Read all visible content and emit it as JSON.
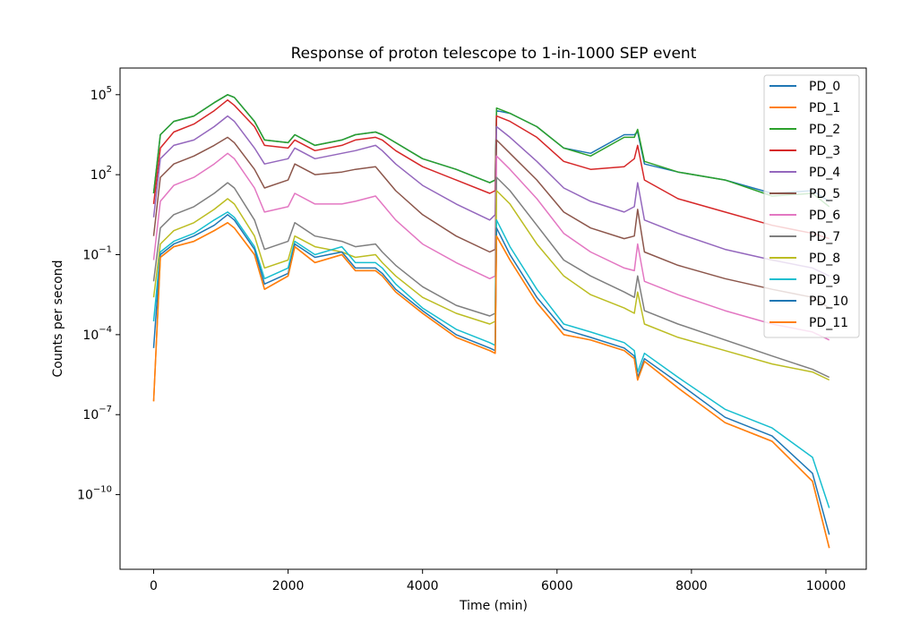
{
  "chart_data": {
    "type": "line",
    "title": "Response of proton telescope to 1-in-1000 SEP event",
    "xlabel": "Time (min)",
    "ylabel": "Counts per second",
    "x_scale": "linear",
    "y_scale": "log",
    "xlim": [
      -500,
      10600
    ],
    "ylim_log10": [
      -12.8,
      6.0
    ],
    "x_ticks": [
      {
        "value": 0,
        "label": "0"
      },
      {
        "value": 2000,
        "label": "2000"
      },
      {
        "value": 4000,
        "label": "4000"
      },
      {
        "value": 6000,
        "label": "6000"
      },
      {
        "value": 8000,
        "label": "8000"
      },
      {
        "value": 10000,
        "label": "10000"
      }
    ],
    "y_ticks": [
      {
        "exp": 5,
        "base": "10",
        "sup": "5"
      },
      {
        "exp": 2,
        "base": "10",
        "sup": "2"
      },
      {
        "exp": -1,
        "base": "10",
        "sup": "−1"
      },
      {
        "exp": -4,
        "base": "10",
        "sup": "−4"
      },
      {
        "exp": -7,
        "base": "10",
        "sup": "−7"
      },
      {
        "exp": -10,
        "base": "10",
        "sup": "−10"
      }
    ],
    "grid": false,
    "legend_position": "top-right",
    "x": [
      0,
      100,
      300,
      600,
      900,
      1100,
      1200,
      1500,
      1650,
      2000,
      2100,
      2400,
      2800,
      3000,
      3300,
      3400,
      3600,
      4000,
      4500,
      5000,
      5080,
      5100,
      5300,
      5700,
      6100,
      6500,
      7000,
      7150,
      7200,
      7300,
      7800,
      8500,
      9200,
      9800,
      10050
    ],
    "series": [
      {
        "name": "PD_0",
        "color": "#1f77b4",
        "values_log10": [
          1.3,
          3.5,
          4.0,
          4.2,
          4.7,
          5.0,
          4.9,
          4.0,
          3.3,
          3.2,
          3.5,
          3.1,
          3.3,
          3.5,
          3.6,
          3.5,
          3.2,
          2.6,
          2.2,
          1.7,
          1.8,
          4.4,
          4.3,
          3.8,
          3.0,
          2.8,
          3.5,
          3.5,
          3.6,
          2.4,
          2.1,
          1.8,
          1.3,
          1.4,
          1.0
        ]
      },
      {
        "name": "PD_1",
        "color": "#ff7f0e",
        "values_log10": [
          -6.5,
          -1.1,
          -0.7,
          -0.5,
          -0.1,
          0.2,
          0.0,
          -1.0,
          -2.3,
          -1.8,
          -0.7,
          -1.3,
          -1.0,
          -1.6,
          -1.6,
          -1.8,
          -2.4,
          -3.2,
          -4.1,
          -4.6,
          -4.7,
          -0.3,
          -1.2,
          -2.8,
          -4.0,
          -4.2,
          -4.6,
          -4.9,
          -5.7,
          -5.0,
          -6.0,
          -7.3,
          -8.0,
          -9.5,
          -12.0
        ]
      },
      {
        "name": "PD_2",
        "color": "#2ca02c",
        "values_log10": [
          1.3,
          3.5,
          4.0,
          4.2,
          4.7,
          5.0,
          4.9,
          4.0,
          3.3,
          3.2,
          3.5,
          3.1,
          3.3,
          3.5,
          3.6,
          3.5,
          3.2,
          2.6,
          2.2,
          1.7,
          1.8,
          4.5,
          4.3,
          3.8,
          3.0,
          2.7,
          3.4,
          3.4,
          3.7,
          2.5,
          2.1,
          1.8,
          1.2,
          1.3,
          0.8
        ]
      },
      {
        "name": "PD_3",
        "color": "#d62728",
        "values_log10": [
          0.9,
          3.0,
          3.6,
          3.9,
          4.4,
          4.8,
          4.6,
          3.8,
          3.1,
          3.0,
          3.3,
          2.9,
          3.1,
          3.3,
          3.4,
          3.3,
          2.9,
          2.3,
          1.8,
          1.3,
          1.4,
          4.2,
          4.0,
          3.4,
          2.5,
          2.2,
          2.3,
          2.6,
          3.1,
          1.8,
          1.1,
          0.6,
          0.1,
          -0.2,
          -0.4
        ]
      },
      {
        "name": "PD_4",
        "color": "#9467bd",
        "values_log10": [
          0.4,
          2.6,
          3.1,
          3.3,
          3.8,
          4.2,
          4.0,
          3.0,
          2.4,
          2.6,
          3.0,
          2.6,
          2.8,
          2.9,
          3.1,
          2.9,
          2.4,
          1.6,
          0.9,
          0.3,
          0.5,
          3.8,
          3.4,
          2.5,
          1.5,
          1.0,
          0.6,
          0.8,
          1.7,
          0.3,
          -0.2,
          -0.8,
          -1.2,
          -1.5,
          -1.8
        ]
      },
      {
        "name": "PD_5",
        "color": "#8c564b",
        "values_log10": [
          -0.3,
          1.9,
          2.4,
          2.7,
          3.1,
          3.4,
          3.2,
          2.2,
          1.5,
          1.8,
          2.4,
          2.0,
          2.1,
          2.2,
          2.3,
          2.0,
          1.4,
          0.5,
          -0.3,
          -0.9,
          -0.8,
          3.3,
          2.8,
          1.8,
          0.6,
          0.0,
          -0.4,
          -0.3,
          0.7,
          -0.9,
          -1.4,
          -1.9,
          -2.3,
          -2.6,
          -3.0
        ]
      },
      {
        "name": "PD_6",
        "color": "#e377c2",
        "values_log10": [
          -1.2,
          1.0,
          1.6,
          1.9,
          2.4,
          2.8,
          2.6,
          1.5,
          0.6,
          0.8,
          1.3,
          0.9,
          0.9,
          1.0,
          1.2,
          0.9,
          0.3,
          -0.6,
          -1.3,
          -1.9,
          -1.8,
          2.7,
          2.2,
          1.1,
          -0.2,
          -0.9,
          -1.5,
          -1.6,
          -0.6,
          -2.0,
          -2.5,
          -3.1,
          -3.6,
          -3.9,
          -4.2
        ]
      },
      {
        "name": "PD_7",
        "color": "#7f7f7f",
        "values_log10": [
          -2.0,
          0.0,
          0.5,
          0.8,
          1.3,
          1.7,
          1.5,
          0.3,
          -0.8,
          -0.5,
          0.2,
          -0.3,
          -0.5,
          -0.7,
          -0.6,
          -0.9,
          -1.4,
          -2.2,
          -2.9,
          -3.3,
          -3.2,
          1.9,
          1.4,
          0.1,
          -1.2,
          -1.8,
          -2.4,
          -2.6,
          -1.8,
          -3.1,
          -3.6,
          -4.2,
          -4.8,
          -5.3,
          -5.6
        ]
      },
      {
        "name": "PD_8",
        "color": "#bcbd22",
        "values_log10": [
          -2.6,
          -0.6,
          -0.1,
          0.2,
          0.7,
          1.1,
          0.9,
          -0.3,
          -1.5,
          -1.2,
          -0.3,
          -0.7,
          -0.9,
          -1.1,
          -1.0,
          -1.3,
          -1.8,
          -2.6,
          -3.2,
          -3.6,
          -3.5,
          1.4,
          0.9,
          -0.6,
          -1.8,
          -2.5,
          -3.0,
          -3.2,
          -2.4,
          -3.6,
          -4.1,
          -4.6,
          -5.1,
          -5.4,
          -5.7
        ]
      },
      {
        "name": "PD_9",
        "color": "#17becf",
        "values_log10": [
          -3.5,
          -0.9,
          -0.5,
          -0.2,
          0.3,
          0.6,
          0.4,
          -0.7,
          -1.9,
          -1.5,
          -0.5,
          -1.0,
          -0.7,
          -1.3,
          -1.3,
          -1.5,
          -2.1,
          -3.0,
          -3.8,
          -4.3,
          -4.4,
          0.3,
          -0.7,
          -2.3,
          -3.6,
          -3.9,
          -4.3,
          -4.6,
          -5.4,
          -4.7,
          -5.6,
          -6.8,
          -7.5,
          -8.6,
          -10.5
        ]
      },
      {
        "name": "PD_10",
        "color": "#1f77b4",
        "values_log10": [
          -4.5,
          -1.0,
          -0.6,
          -0.3,
          0.1,
          0.5,
          0.3,
          -0.8,
          -2.1,
          -1.7,
          -0.6,
          -1.1,
          -0.9,
          -1.5,
          -1.5,
          -1.7,
          -2.3,
          -3.1,
          -4.0,
          -4.5,
          -4.6,
          0.0,
          -1.0,
          -2.6,
          -3.8,
          -4.1,
          -4.5,
          -4.8,
          -5.6,
          -4.9,
          -5.8,
          -7.1,
          -7.8,
          -9.2,
          -11.5
        ]
      },
      {
        "name": "PD_11",
        "color": "#ff7f0e",
        "values_log10": [
          -6.5,
          -1.1,
          -0.7,
          -0.5,
          -0.1,
          0.2,
          0.0,
          -1.0,
          -2.3,
          -1.8,
          -0.7,
          -1.3,
          -1.0,
          -1.6,
          -1.6,
          -1.8,
          -2.4,
          -3.2,
          -4.1,
          -4.6,
          -4.7,
          -0.3,
          -1.2,
          -2.8,
          -4.0,
          -4.2,
          -4.6,
          -4.9,
          -5.7,
          -5.0,
          -6.0,
          -7.3,
          -8.0,
          -9.5,
          -12.0
        ]
      }
    ]
  }
}
